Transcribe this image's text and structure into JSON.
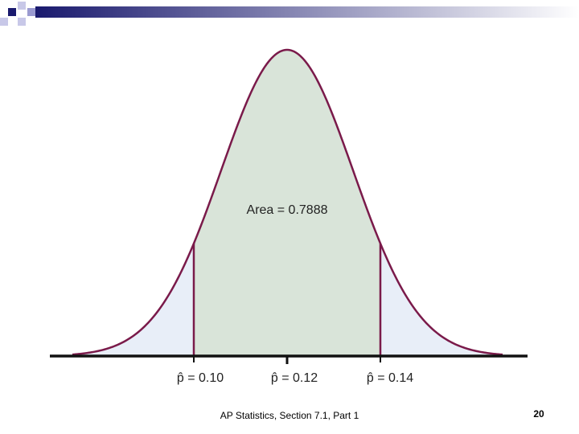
{
  "slide": {
    "area_label": "Area = 0.7888",
    "markers": [
      "p̂ = 0.10",
      "p̂ = 0.12",
      "p̂ = 0.14"
    ],
    "footer": "AP Statistics, Section 7.1, Part 1",
    "page_number": "20"
  }
}
